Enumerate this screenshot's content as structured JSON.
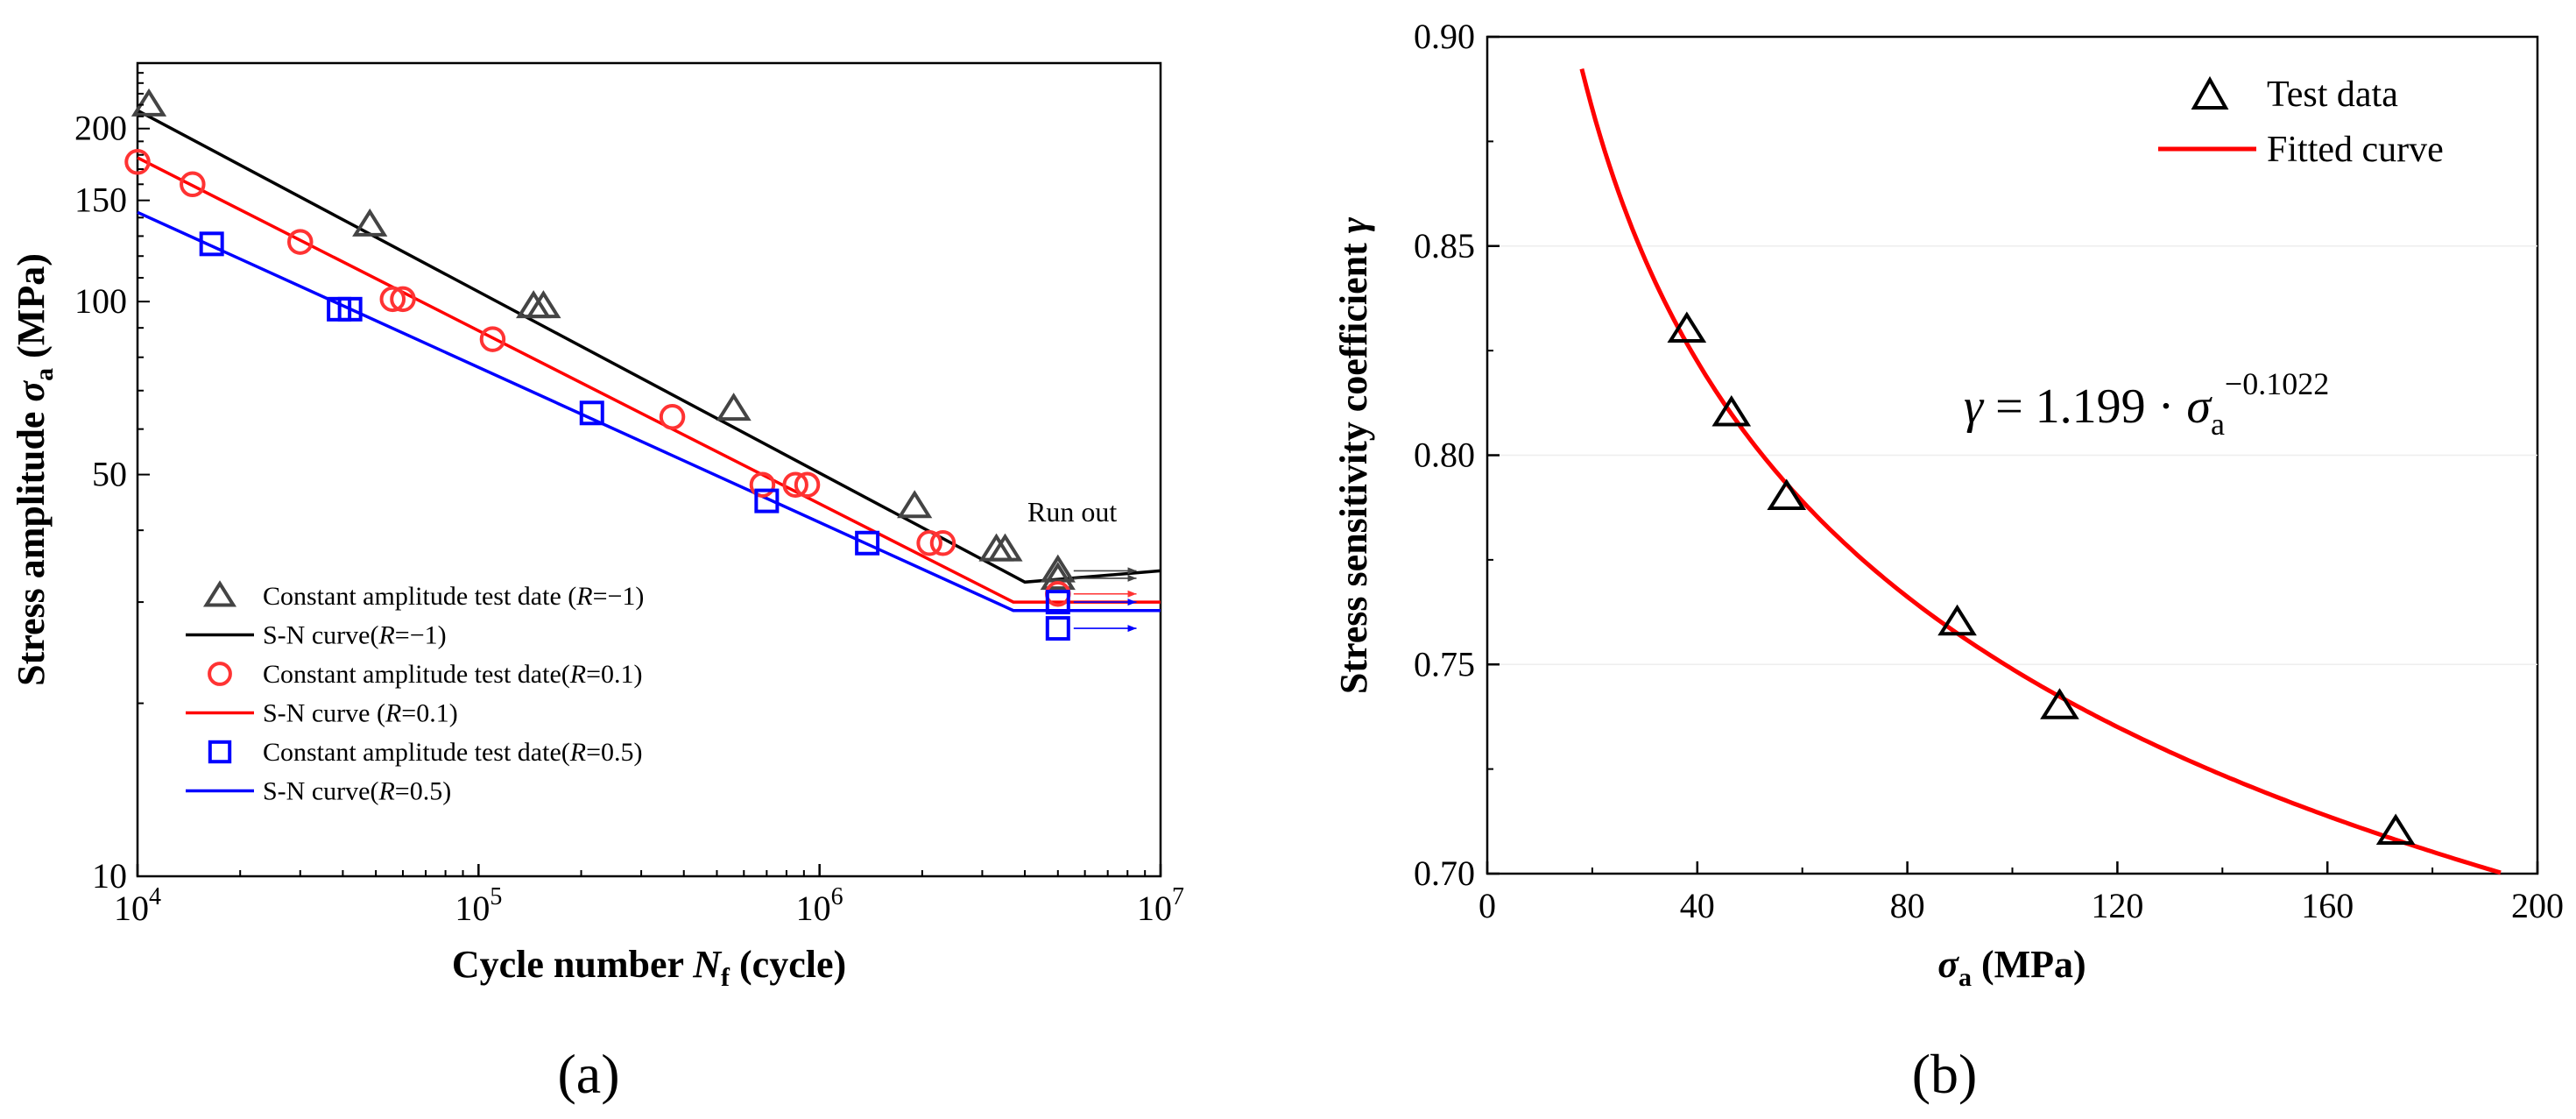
{
  "chart_data": [
    {
      "type": "scatter",
      "panel_label": "(a)",
      "xscale": "log",
      "yscale": "log",
      "xlim": [
        10000,
        10000000
      ],
      "ylim": [
        10,
        260
      ],
      "x_ticks": [
        10000,
        100000,
        1000000,
        10000000
      ],
      "x_tick_labels": [
        {
          "base": "10",
          "exp": "4"
        },
        {
          "base": "10",
          "exp": "5"
        },
        {
          "base": "10",
          "exp": "6"
        },
        {
          "base": "10",
          "exp": "7"
        }
      ],
      "y_ticks": [
        10,
        50,
        100,
        150,
        200
      ],
      "y_tick_labels": [
        "10",
        "50",
        "100",
        "150",
        "200"
      ],
      "xlabel": {
        "pre": "Cycle number ",
        "sym": "N",
        "sub": "f",
        "post": " (cycle)"
      },
      "ylabel": {
        "pre": "Stress amplitude ",
        "sym": "σ",
        "sub": "a",
        "post": " (MPa)"
      },
      "annotation": "Run out",
      "series": [
        {
          "name": "Constant amplitude test date (R=−1)",
          "legend": {
            "pre": "Constant amplitude test date (",
            "r": "R",
            "post": "=−1)"
          },
          "marker": "triangle",
          "color": "#444444",
          "points": [
            [
              10800,
              220
            ],
            [
              48000,
              136
            ],
            [
              145000,
              98
            ],
            [
              155000,
              98
            ],
            [
              560000,
              65
            ],
            [
              1900000,
              44
            ],
            [
              3300000,
              37
            ],
            [
              3500000,
              37
            ],
            [
              5000000,
              34
            ],
            [
              5000000,
              33
            ]
          ],
          "runout_y": [
            34,
            33
          ]
        },
        {
          "name": "S-N curve(R=−1)",
          "legend": {
            "pre": "S-N curve(",
            "r": "R",
            "post": "=−1)"
          },
          "line": true,
          "color": "#000000",
          "curve": [
            [
              10000,
              215
            ],
            [
              4000000,
              32.5
            ],
            [
              10000000,
              34
            ]
          ]
        },
        {
          "name": "Constant amplitude test date(R=0.1)",
          "legend": {
            "pre": "Constant amplitude test date(",
            "r": "R",
            "post": "=0.1)"
          },
          "marker": "circle",
          "color": "#ff3333",
          "points": [
            [
              10000,
              175
            ],
            [
              14500,
              160
            ],
            [
              30000,
              127
            ],
            [
              56000,
              101
            ],
            [
              60000,
              101
            ],
            [
              110000,
              86
            ],
            [
              370000,
              63
            ],
            [
              680000,
              48
            ],
            [
              850000,
              48
            ],
            [
              920000,
              48
            ],
            [
              2100000,
              38
            ],
            [
              2300000,
              38
            ],
            [
              5000000,
              31
            ]
          ],
          "runout_y": [
            31
          ]
        },
        {
          "name": "S-N curve (R=0.1)",
          "legend": {
            "pre": "S-N curve (",
            "r": "R",
            "post": "=0.1)"
          },
          "line": true,
          "color": "#ff0000",
          "curve": [
            [
              10000,
              178
            ],
            [
              3700000,
              30
            ],
            [
              10000000,
              30
            ]
          ]
        },
        {
          "name": "Constant amplitude test date(R=0.5)",
          "legend": {
            "pre": "Constant amplitude test date(",
            "r": "R",
            "post": "=0.5)"
          },
          "marker": "square",
          "color": "#0000ff",
          "points": [
            [
              16500,
              126
            ],
            [
              39000,
              97
            ],
            [
              42000,
              97
            ],
            [
              215000,
              64
            ],
            [
              700000,
              45
            ],
            [
              1380000,
              38
            ],
            [
              5000000,
              30
            ],
            [
              5000000,
              27
            ]
          ],
          "runout_y": [
            30,
            27
          ]
        },
        {
          "name": "S-N curve(R=0.5)",
          "legend": {
            "pre": "S-N curve(",
            "r": "R",
            "post": "=0.5)"
          },
          "line": true,
          "color": "#0000ff",
          "curve": [
            [
              10000,
              143
            ],
            [
              3700000,
              29
            ],
            [
              10000000,
              29
            ]
          ]
        }
      ]
    },
    {
      "type": "scatter",
      "panel_label": "(b)",
      "xlim": [
        0,
        200
      ],
      "ylim": [
        0.7,
        0.9
      ],
      "x_ticks": [
        0,
        40,
        80,
        120,
        160,
        200
      ],
      "x_tick_labels": [
        "0",
        "40",
        "80",
        "120",
        "160",
        "200"
      ],
      "y_ticks": [
        0.7,
        0.75,
        0.8,
        0.85,
        0.9
      ],
      "y_tick_labels": [
        "0.70",
        "0.75",
        "0.80",
        "0.85",
        "0.90"
      ],
      "xlabel": {
        "pre": "",
        "sym": "σ",
        "sub": "a",
        "post": " (MPa)"
      },
      "ylabel": {
        "pre": "Stress sensitivity coefficient ",
        "sym": "γ",
        "sub": "",
        "post": ""
      },
      "equation": {
        "lhs": "γ",
        "eq": " = 1.199 · ",
        "sym": "σ",
        "sub": "a",
        "exp": "−0.1022"
      },
      "fit": {
        "a": 1.199,
        "b": -0.1022,
        "x_range": [
          18,
          193
        ]
      },
      "series": [
        {
          "name": "Test data",
          "marker": "triangle",
          "color": "#000000",
          "points": [
            [
              38,
              0.83
            ],
            [
              46.5,
              0.81
            ],
            [
              57,
              0.79
            ],
            [
              89.5,
              0.76
            ],
            [
              109,
              0.74
            ],
            [
              173,
              0.71
            ]
          ]
        },
        {
          "name": "Fitted curve",
          "line": true,
          "color": "#ff0000"
        }
      ]
    }
  ]
}
